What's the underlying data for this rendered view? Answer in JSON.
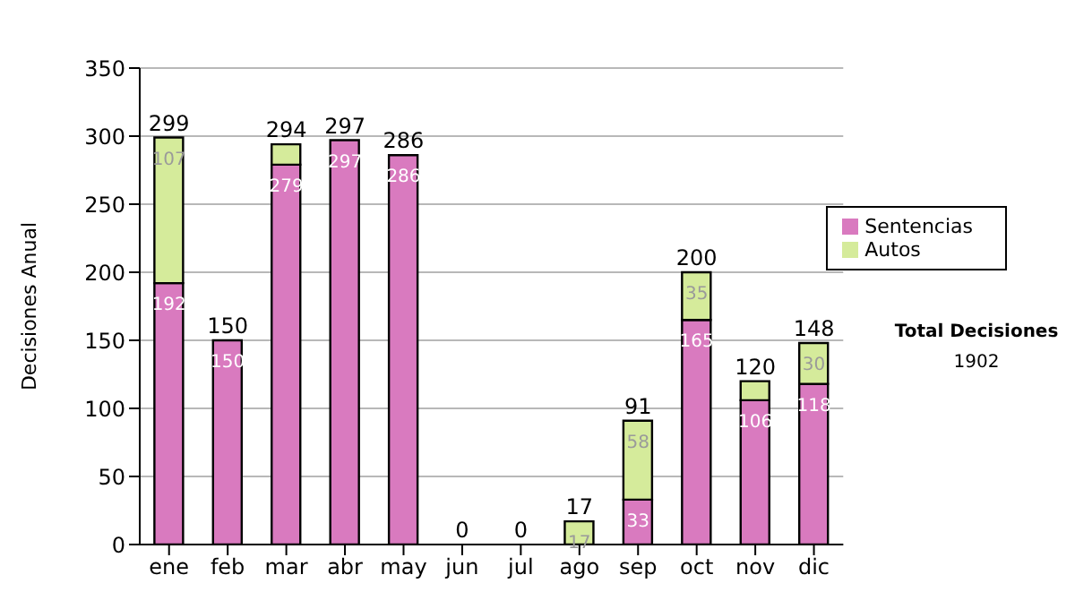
{
  "chart_data": {
    "type": "bar",
    "stacked": true,
    "ylabel": "Decisiones Anual",
    "categories": [
      "ene",
      "feb",
      "mar",
      "abr",
      "may",
      "jun",
      "jul",
      "ago",
      "sep",
      "oct",
      "nov",
      "dic"
    ],
    "series": [
      {
        "name": "Sentencias",
        "color": "#d97abf",
        "values": [
          192,
          150,
          279,
          297,
          286,
          0,
          0,
          0,
          33,
          165,
          106,
          118
        ],
        "value_labels": [
          "192",
          "150",
          "279",
          "297",
          "286",
          null,
          null,
          null,
          "33",
          "165",
          "106",
          "118"
        ]
      },
      {
        "name": "Autos",
        "color": "#d5eb9b",
        "values": [
          107,
          0,
          15,
          0,
          0,
          0,
          0,
          17,
          58,
          35,
          14,
          30
        ],
        "value_labels": [
          "107",
          null,
          null,
          null,
          null,
          null,
          null,
          "17",
          "58",
          "35",
          null,
          "30"
        ]
      }
    ],
    "totals": [
      "299",
      "150",
      "294",
      "297",
      "286",
      "0",
      "0",
      "17",
      "91",
      "200",
      "120",
      "148"
    ],
    "ylim": [
      0,
      350
    ],
    "yticks": [
      0,
      50,
      100,
      150,
      200,
      250,
      300,
      350
    ],
    "grid": "y",
    "legend": "right",
    "annotations": [
      "Total Decisiones",
      "1902"
    ]
  }
}
